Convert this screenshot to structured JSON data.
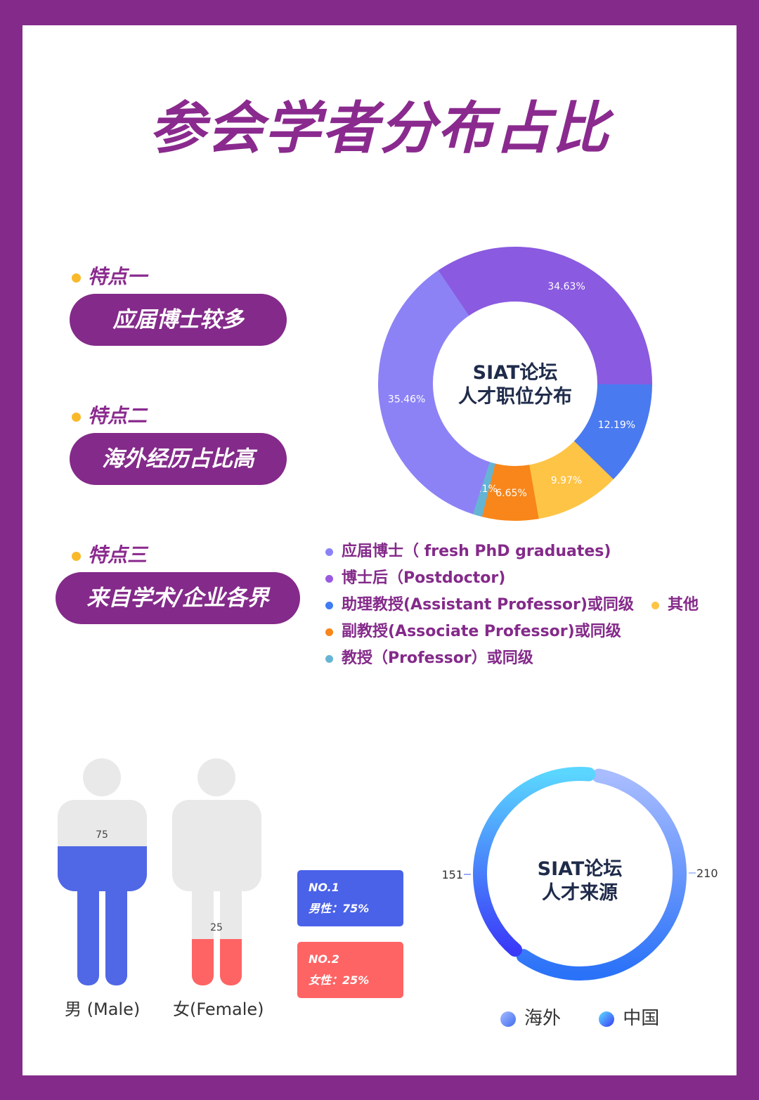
{
  "title": "参会学者分布占比",
  "features": [
    {
      "label": "特点一",
      "text": "应届博士较多"
    },
    {
      "label": "特点二",
      "text": "海外经历占比高"
    },
    {
      "label": "特点三",
      "text": "来自学术/企业各界"
    }
  ],
  "chart_data": [
    {
      "type": "pie",
      "title": "SIAT论坛\n人才职位分布",
      "title_line1": "SIAT论坛",
      "title_line2": "人才职位分布",
      "series": [
        {
          "name": "博士后（Postdoctor)",
          "value": 34.63,
          "label": "34.63%",
          "color": "#8a5ae0"
        },
        {
          "name": "助理教授(Assistant Professor)或同级",
          "value": 12.19,
          "label": "12.19%",
          "color": "#4a7af0"
        },
        {
          "name": "其他",
          "value": 9.97,
          "label": "9.97%",
          "color": "#fec446"
        },
        {
          "name": "副教授(Associate Professor)或同级",
          "value": 6.65,
          "label": "6.65%",
          "color": "#f8861a"
        },
        {
          "name": "教授（Professor）或同级",
          "value": 1.1,
          "label": "1.1%",
          "color": "#66b4d4"
        },
        {
          "name": "应届博士（ fresh PhD graduates)",
          "value": 35.46,
          "label": "35.46%",
          "color": "#8c82f6"
        }
      ],
      "legend": [
        {
          "text": "应届博士（ fresh PhD graduates)",
          "color": "#8c82f6"
        },
        {
          "text": "博士后（Postdoctor)",
          "color": "#9a5ae0"
        },
        {
          "text": "助理教授(Assistant Professor)或同级",
          "color": "#3f7cf4"
        },
        {
          "text": "副教授(Associate Professor)或同级",
          "color": "#f8861a"
        },
        {
          "text": "教授（Professor）或同级",
          "color": "#66b4d4"
        },
        {
          "text": "其他",
          "color": "#fec446"
        }
      ]
    },
    {
      "type": "pictorial-bar",
      "categories": [
        "男 (Male)",
        "女(Female)"
      ],
      "values": [
        75,
        25
      ],
      "colors": [
        "#5068e6",
        "#fe6464"
      ]
    },
    {
      "type": "pie",
      "title_line1": "SIAT论坛",
      "title_line2": "人才来源",
      "series": [
        {
          "name": "海外",
          "value": 210,
          "label": "210"
        },
        {
          "name": "中国",
          "value": 151,
          "label": "151"
        }
      ]
    }
  ],
  "gender_boxes": [
    {
      "rank": "NO.1",
      "text": "男性：75%",
      "color": "#4a62e8"
    },
    {
      "rank": "NO.2",
      "text": "女性：25%",
      "color": "#fe6464"
    }
  ]
}
